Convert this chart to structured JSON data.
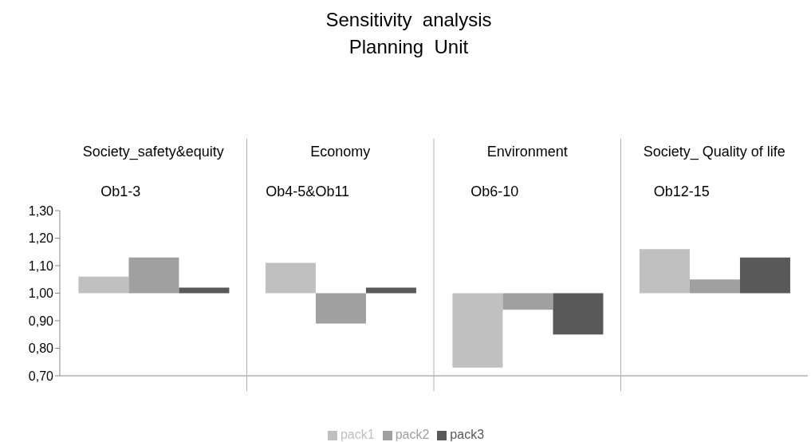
{
  "chart_data": {
    "type": "bar",
    "title": "Sensitivity  analysis",
    "subtitle": "Planning  Unit",
    "categories": [
      "Society_safety&equity",
      "Economy",
      "Environment",
      "Society_ Quality of life"
    ],
    "annotations": [
      "Ob1-3",
      "Ob4-5&Ob11",
      "Ob6-10",
      "Ob12-15"
    ],
    "series": [
      {
        "name": "pack1",
        "color": "#c0c0c0",
        "base": [
          1,
          1,
          1,
          1
        ],
        "values": [
          0.06,
          0.11,
          -0.27,
          0.16
        ]
      },
      {
        "name": "pack2",
        "color": "#a0a0a0",
        "base": [
          1,
          1,
          1,
          1
        ],
        "values": [
          0.13,
          -0.11,
          -0.06,
          0.05
        ]
      },
      {
        "name": "pack3",
        "color": "#595959",
        "base": [
          1,
          1,
          1,
          1
        ],
        "values": [
          0.02,
          0.02,
          -0.15,
          0.13
        ]
      }
    ],
    "ylim": [
      0.7,
      1.3
    ],
    "yticks": [
      {
        "value": 0.7,
        "label": "0,70"
      },
      {
        "value": 0.8,
        "label": "0,80"
      },
      {
        "value": 0.9,
        "label": "0,90"
      },
      {
        "value": 1.0,
        "label": "1,00"
      },
      {
        "value": 1.1,
        "label": "1,10"
      },
      {
        "value": 1.2,
        "label": "1,20"
      },
      {
        "value": 1.3,
        "label": "1,30"
      }
    ],
    "grid": "x",
    "legend": "bottom"
  }
}
